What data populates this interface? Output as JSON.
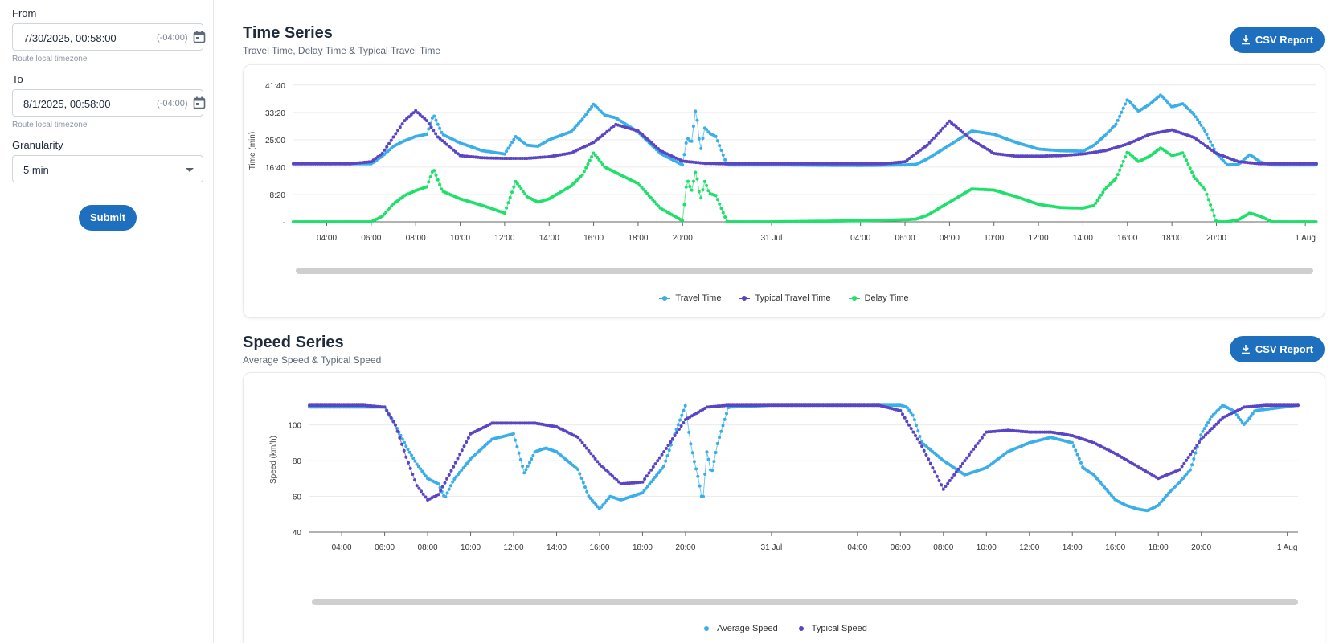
{
  "sidebar": {
    "from_label": "From",
    "from_value": "7/30/2025, 00:58:00",
    "from_tz": "(-04:00)",
    "from_hint": "Route local timezone",
    "to_label": "To",
    "to_value": "8/1/2025, 00:58:00",
    "to_tz": "(-04:00)",
    "to_hint": "Route local timezone",
    "granularity_label": "Granularity",
    "granularity_value": "5 min",
    "submit_label": "Submit"
  },
  "time_section": {
    "title": "Time Series",
    "subtitle": "Travel Time, Delay Time & Typical Travel Time",
    "csv_label": "CSV Report"
  },
  "speed_section": {
    "title": "Speed Series",
    "subtitle": "Average Speed & Typical Speed",
    "csv_label": "CSV Report"
  },
  "colors": {
    "accent": "#1f6fbf",
    "travel": "#3aaee8",
    "typical": "#5a45c4",
    "delay": "#1ee06a"
  },
  "chart_data": [
    {
      "type": "scatter",
      "ylabel": "Time (min)",
      "y_tick_labels": [
        "-",
        "8:20",
        "16:40",
        "25:00",
        "33:20",
        "41:40"
      ],
      "y_tick_values": [
        0,
        500,
        1000,
        1500,
        2000,
        2500
      ],
      "ylim": [
        0,
        2600
      ],
      "x_tick_labels": [
        "04:00",
        "06:00",
        "08:00",
        "10:00",
        "12:00",
        "14:00",
        "16:00",
        "18:00",
        "20:00",
        "31 Jul",
        "04:00",
        "06:00",
        "08:00",
        "10:00",
        "12:00",
        "14:00",
        "16:00",
        "18:00",
        "20:00",
        "1 Aug"
      ],
      "x_tick_hours": [
        4,
        6,
        8,
        10,
        12,
        14,
        16,
        18,
        20,
        24,
        28,
        30,
        32,
        34,
        36,
        38,
        40,
        42,
        44,
        48
      ],
      "xlim_hours": [
        2.5,
        48.5
      ],
      "series": [
        {
          "name": "Travel Time",
          "color": "#3aaee8",
          "x": [
            2.5,
            4,
            5,
            6,
            6.5,
            7,
            7.5,
            8,
            8.5,
            8.8,
            9.2,
            10,
            11,
            12,
            12.5,
            13,
            13.5,
            14,
            15,
            15.5,
            16,
            16.5,
            17,
            18,
            19,
            20,
            20.2,
            20.4,
            20.6,
            20.8,
            21,
            21.2,
            21.5,
            22,
            24,
            28,
            30,
            30.5,
            31,
            32,
            33,
            34,
            35,
            36,
            37,
            38,
            38.5,
            39,
            39.5,
            40,
            40.5,
            41,
            41.5,
            42,
            42.5,
            43,
            43.5,
            44,
            44.5,
            45,
            45.5,
            46,
            46.5,
            48.5
          ],
          "y": [
            1060,
            1060,
            1060,
            1060,
            1200,
            1380,
            1480,
            1560,
            1600,
            1960,
            1600,
            1440,
            1300,
            1240,
            1560,
            1400,
            1380,
            1500,
            1650,
            1880,
            2150,
            1950,
            1900,
            1640,
            1250,
            1040,
            1540,
            1440,
            2100,
            1280,
            1730,
            1620,
            1560,
            1040,
            1040,
            1030,
            1040,
            1050,
            1150,
            1400,
            1660,
            1600,
            1450,
            1330,
            1300,
            1290,
            1400,
            1580,
            1790,
            2240,
            2020,
            2150,
            2320,
            2100,
            2160,
            1960,
            1650,
            1250,
            1040,
            1050,
            1230,
            1090,
            1040,
            1040
          ]
        },
        {
          "name": "Typical Travel Time",
          "color": "#5a45c4",
          "x": [
            2.5,
            4,
            5,
            6,
            6.5,
            7,
            7.5,
            8,
            8.5,
            9,
            10,
            11,
            12,
            13,
            14,
            15,
            16,
            17,
            18,
            19,
            20,
            21,
            22,
            24,
            26,
            28,
            29,
            30,
            31,
            32,
            33,
            34,
            35,
            36,
            37,
            38,
            39,
            40,
            41,
            42,
            43,
            44,
            45,
            46,
            47,
            48.5
          ],
          "y": [
            1060,
            1060,
            1060,
            1100,
            1250,
            1550,
            1850,
            2030,
            1850,
            1550,
            1210,
            1170,
            1160,
            1160,
            1190,
            1260,
            1450,
            1780,
            1660,
            1300,
            1110,
            1070,
            1060,
            1060,
            1060,
            1060,
            1060,
            1100,
            1400,
            1840,
            1500,
            1250,
            1200,
            1200,
            1210,
            1240,
            1300,
            1420,
            1600,
            1680,
            1540,
            1250,
            1100,
            1060,
            1060,
            1060
          ]
        },
        {
          "name": "Delay Time",
          "color": "#1ee06a",
          "x": [
            2.5,
            4,
            5,
            6,
            6.5,
            7,
            7.5,
            8,
            8.5,
            8.8,
            9.2,
            10,
            11,
            12,
            12.5,
            13,
            13.5,
            14,
            15,
            15.5,
            16,
            16.5,
            17,
            18,
            19,
            20,
            20.2,
            20.4,
            20.6,
            20.8,
            21,
            21.2,
            21.5,
            22,
            24,
            28,
            30,
            30.5,
            31,
            32,
            33,
            34,
            35,
            36,
            37,
            38,
            38.5,
            39,
            39.5,
            40,
            40.5,
            41,
            41.5,
            42,
            42.5,
            43,
            43.5,
            44,
            44.5,
            45,
            45.5,
            46,
            46.5,
            48.5
          ],
          "y": [
            0,
            0,
            0,
            0,
            100,
            330,
            480,
            570,
            640,
            970,
            560,
            420,
            300,
            160,
            740,
            460,
            360,
            420,
            660,
            860,
            1260,
            1000,
            900,
            700,
            250,
            20,
            790,
            560,
            950,
            390,
            750,
            520,
            480,
            0,
            0,
            20,
            40,
            50,
            120,
            360,
            600,
            580,
            460,
            320,
            260,
            250,
            300,
            600,
            800,
            1280,
            1100,
            1200,
            1350,
            1210,
            1260,
            820,
            580,
            0,
            0,
            40,
            160,
            100,
            0,
            0
          ]
        }
      ]
    },
    {
      "type": "scatter",
      "ylabel": "Speed (km/h)",
      "y_tick_labels": [
        "40",
        "60",
        "80",
        "100"
      ],
      "y_tick_values": [
        40,
        60,
        80,
        100
      ],
      "ylim": [
        40,
        121
      ],
      "x_tick_labels": [
        "04:00",
        "06:00",
        "08:00",
        "10:00",
        "12:00",
        "14:00",
        "16:00",
        "18:00",
        "20:00",
        "31 Jul",
        "04:00",
        "06:00",
        "08:00",
        "10:00",
        "12:00",
        "14:00",
        "16:00",
        "18:00",
        "20:00",
        "1 Aug"
      ],
      "x_tick_hours": [
        4,
        6,
        8,
        10,
        12,
        14,
        16,
        18,
        20,
        24,
        28,
        30,
        32,
        34,
        36,
        38,
        40,
        42,
        44,
        48
      ],
      "xlim_hours": [
        2.5,
        48.5
      ],
      "series": [
        {
          "name": "Average Speed",
          "color": "#3aaee8",
          "x": [
            2.5,
            4,
            5,
            6,
            6.5,
            7,
            7.5,
            8,
            8.5,
            8.8,
            9.2,
            10,
            11,
            12,
            12.5,
            13,
            13.5,
            14,
            15,
            15.5,
            16,
            16.5,
            17,
            18,
            19,
            19.5,
            20,
            20.2,
            20.4,
            20.6,
            20.8,
            21,
            21.2,
            21.5,
            22,
            24,
            28,
            30,
            30.3,
            30.6,
            31,
            32,
            33,
            34,
            35,
            36,
            37,
            38,
            38.5,
            39,
            39.5,
            40,
            40.5,
            41,
            41.5,
            42,
            42.5,
            43,
            43.5,
            44,
            44.5,
            45,
            45.5,
            46,
            46.5,
            48.5
          ],
          "y": [
            110,
            110,
            110,
            110,
            100,
            88,
            78,
            70,
            67,
            59,
            69,
            81,
            92,
            95,
            73,
            85,
            87,
            85,
            75,
            60,
            53,
            60,
            58,
            62,
            77,
            95,
            111,
            92,
            80,
            70,
            56,
            86,
            72,
            90,
            110,
            111,
            111,
            111,
            110,
            105,
            90,
            80,
            72,
            76,
            85,
            90,
            93,
            90,
            76,
            72,
            65,
            58,
            55,
            53,
            52,
            55,
            62,
            68,
            75,
            95,
            105,
            111,
            108,
            100,
            108,
            111
          ]
        },
        {
          "name": "Typical Speed",
          "color": "#5a45c4",
          "x": [
            2.5,
            4,
            5,
            6,
            6.5,
            7,
            7.5,
            8,
            8.5,
            9,
            10,
            11,
            12,
            13,
            14,
            15,
            16,
            17,
            18,
            19,
            20,
            21,
            22,
            24,
            26,
            28,
            29,
            30,
            31,
            32,
            33,
            34,
            35,
            36,
            37,
            38,
            39,
            40,
            41,
            42,
            43,
            44,
            45,
            46,
            47,
            48.5
          ],
          "y": [
            111,
            111,
            111,
            110,
            100,
            82,
            66,
            58,
            61,
            72,
            95,
            101,
            101,
            101,
            99,
            93,
            78,
            67,
            68,
            85,
            103,
            110,
            111,
            111,
            111,
            111,
            111,
            108,
            88,
            64,
            80,
            96,
            97,
            96,
            96,
            94,
            90,
            84,
            77,
            70,
            75,
            92,
            104,
            110,
            111,
            111
          ]
        }
      ]
    }
  ]
}
